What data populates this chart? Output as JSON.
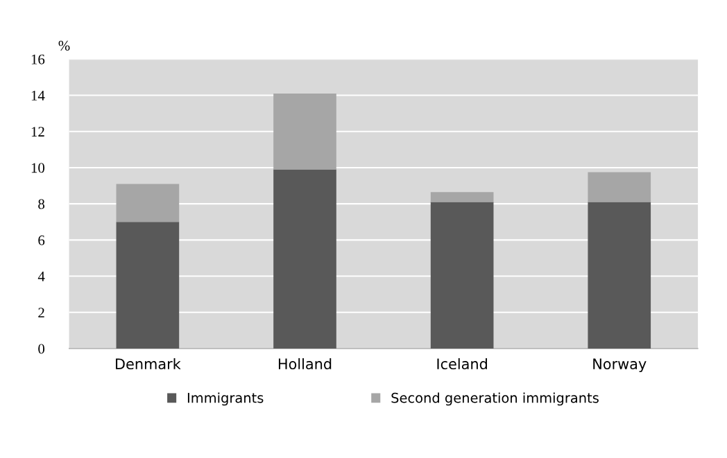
{
  "chart_data": {
    "type": "bar",
    "stacked": true,
    "ylabel": "%",
    "categories": [
      "Denmark",
      "Holland",
      "Iceland",
      "Norway"
    ],
    "series": [
      {
        "name": "Immigrants",
        "color": "#595959",
        "values": [
          7.0,
          9.9,
          8.1,
          8.1
        ]
      },
      {
        "name": "Second generation immigrants",
        "color": "#a6a6a6",
        "values": [
          2.1,
          4.2,
          0.55,
          1.65
        ]
      }
    ],
    "ylim": [
      0,
      16
    ],
    "yticks": [
      0,
      2,
      4,
      6,
      8,
      10,
      12,
      14,
      16
    ],
    "grid": "y",
    "legend": "bottom"
  }
}
